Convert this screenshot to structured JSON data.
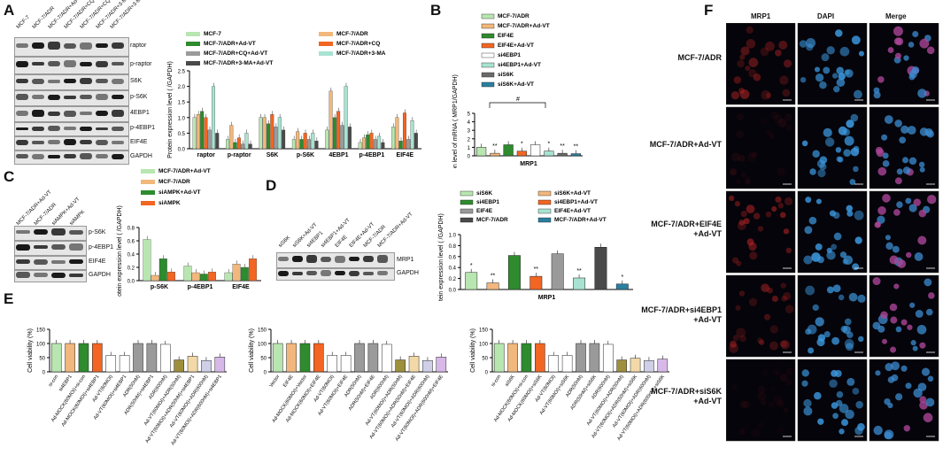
{
  "panels": {
    "A": {
      "letter": "A",
      "blot_lanes": [
        "MCF-7",
        "MCF-7/ADR",
        "MCF-7/ADR+Ad-VT",
        "MCF-7/ADR+CQ+Ad-VT",
        "MCF-7/ADR+CQ",
        "MCF-7/ADR+3-MA",
        "MCF-7/ADR+3-MA+Ad-VT"
      ],
      "blot_rows": [
        "raptor",
        "p-raptor",
        "S6K",
        "p-S6K",
        "4EBP1",
        "p-4EBP1",
        "EIF4E",
        "GAPDH"
      ]
    },
    "B": {
      "letter": "B"
    },
    "C": {
      "letter": "C",
      "blot_lanes": [
        "MCF-7/ADR+Ad-VT",
        "MCF-7/ADR",
        "siAMPK+Ad-VT",
        "siAMPK"
      ],
      "blot_rows": [
        "p-S6K",
        "p-4EBP1",
        "EIF4E",
        "GAPDH"
      ]
    },
    "D": {
      "letter": "D",
      "blot_lanes": [
        "siS6K",
        "siS6K+Ad-VT",
        "si4EBP1",
        "si4EBP1+Ad-VT",
        "EIF4E",
        "EIF4E+Ad-VT",
        "MCF-7/ADR",
        "MCF-7/ADR+Ad-VT"
      ],
      "blot_rows": [
        "MRP1",
        "GAPDH"
      ]
    },
    "E": {
      "letter": "E"
    },
    "F": {
      "letter": "F",
      "col_titles": [
        "MRP1",
        "DAPI",
        "Merge"
      ],
      "row_labels": [
        "MCF-7/ADR",
        "MCF-7/ADR+Ad-VT",
        "MCF-7/ADR+EIF4E\n+Ad-VT",
        "MCF-7/ADR+si4EBP1\n+Ad-VT",
        "MCF-7/ADR+siS6K\n+Ad-VT"
      ]
    }
  },
  "chart_data": [
    {
      "id": "A",
      "type": "bar",
      "title": "",
      "ylabel": "Protein expression level ( /GAPDH)",
      "ylim": [
        0,
        2.5
      ],
      "yticks": [
        "0.0",
        "0.5",
        "1.0",
        "1.5",
        "2.0",
        "2.5"
      ],
      "categories": [
        "raptor",
        "p-raptor",
        "S6K",
        "p-S6K",
        "4EBP1",
        "p-4EBP1",
        "EIF4E"
      ],
      "legend": [
        "MCF-7",
        "MCF-7/ADR",
        "MCF-7/ADR+Ad-VT",
        "MCF-7/ADR+CQ",
        "MCF-7/ADR+CQ+Ad-VT",
        "MCF-7/ADR+3-MA",
        "MCF-7/ADR+3-MA+Ad-VT"
      ],
      "colors": [
        "#b8e6b0",
        "#f2b77c",
        "#2e8b2e",
        "#f26522",
        "#9a9a9a",
        "#a8e3d2",
        "#4a4a4a"
      ],
      "series": [
        {
          "name": "MCF-7",
          "values": [
            1.0,
            0.3,
            1.0,
            0.3,
            0.6,
            0.2,
            0.7
          ]
        },
        {
          "name": "MCF-7/ADR",
          "values": [
            1.1,
            0.75,
            1.0,
            0.55,
            1.85,
            0.35,
            1.0
          ]
        },
        {
          "name": "MCF-7/ADR+Ad-VT",
          "values": [
            1.2,
            0.2,
            0.8,
            0.3,
            1.0,
            0.45,
            0.25
          ]
        },
        {
          "name": "MCF-7/ADR+CQ",
          "values": [
            1.0,
            0.35,
            1.1,
            0.5,
            1.2,
            0.5,
            1.15
          ]
        },
        {
          "name": "MCF-7/ADR+CQ+Ad-VT",
          "values": [
            0.6,
            0.15,
            0.7,
            0.3,
            0.75,
            0.3,
            0.3
          ]
        },
        {
          "name": "MCF-7/ADR+3-MA",
          "values": [
            2.0,
            0.5,
            1.0,
            0.5,
            2.0,
            0.4,
            0.9
          ]
        },
        {
          "name": "MCF-7/ADR+3-MA+Ad-VT",
          "values": [
            0.5,
            0.15,
            0.6,
            0.25,
            0.7,
            0.2,
            0.5
          ]
        }
      ]
    },
    {
      "id": "B",
      "type": "bar",
      "ylabel": "Expression level  of  mRNA ( MRP1/GAPDH)",
      "xlabel": "MRP1",
      "ylim": [
        0,
        5
      ],
      "yticks": [
        "0",
        "1",
        "2",
        "3",
        "4",
        "5"
      ],
      "categories": [
        "MCF-7/ADR",
        "MCF-7/ADR+Ad-VT",
        "EIF4E",
        "EIF4E+Ad-VT",
        "si4EBP1",
        "si4EBP1+Ad-VT",
        "siS6K",
        "siS6K+Ad-VT"
      ],
      "values": [
        1.0,
        0.3,
        1.3,
        0.55,
        1.3,
        0.55,
        0.3,
        0.25
      ],
      "colors": [
        "#b8e6b0",
        "#f2b77c",
        "#2e8b2e",
        "#f26522",
        "#ffffff",
        "#a8e3d2",
        "#6a6a6a",
        "#2a7fa0"
      ],
      "annotations": [
        "",
        "**",
        "",
        "*",
        "",
        "*",
        "**",
        "**"
      ],
      "bracket_label": "#"
    },
    {
      "id": "C",
      "type": "bar",
      "ylabel": "Protein expression level ( /GAPDH)",
      "ylim": [
        0,
        0.8
      ],
      "yticks": [
        "0.0",
        "0.2",
        "0.4",
        "0.6",
        "0.8"
      ],
      "categories": [
        "p-S6K",
        "p-4EBP1",
        "EIF4E"
      ],
      "legend": [
        "MCF-7/ADR+Ad-VT",
        "MCF-7/ADR",
        "siAMPK+Ad-VT",
        "siAMPK"
      ],
      "colors": [
        "#b8e6b0",
        "#f2b77c",
        "#2e8b2e",
        "#f26522"
      ],
      "series": [
        {
          "name": "MCF-7/ADR+Ad-VT",
          "values": [
            0.62,
            0.22,
            0.12
          ]
        },
        {
          "name": "MCF-7/ADR",
          "values": [
            0.08,
            0.12,
            0.25
          ]
        },
        {
          "name": "siAMPK+Ad-VT",
          "values": [
            0.33,
            0.1,
            0.2
          ]
        },
        {
          "name": "siAMPK",
          "values": [
            0.13,
            0.13,
            0.33
          ]
        }
      ]
    },
    {
      "id": "D",
      "type": "bar",
      "ylabel": "Protein expression level ( /GAPDH)",
      "xlabel": "MRP1",
      "ylim": [
        0,
        1.0
      ],
      "yticks": [
        "0.0",
        "0.2",
        "0.4",
        "0.6",
        "0.8",
        "1.0"
      ],
      "categories": [
        "siS6K",
        "siS6K+Ad-VT",
        "si4EBP1",
        "si4EBP1+Ad-VT",
        "EIF4E",
        "EIF4E+Ad-VT",
        "MCF-7/ADR",
        "MCF-7/ADR+Ad-VT"
      ],
      "values": [
        0.31,
        0.12,
        0.62,
        0.24,
        0.65,
        0.21,
        0.77,
        0.1
      ],
      "colors": [
        "#b8e6b0",
        "#f2b77c",
        "#2e8b2e",
        "#f26522",
        "#9a9a9a",
        "#a8e3d2",
        "#4a4a4a",
        "#2a7fa0"
      ],
      "annotations": [
        "*",
        "**",
        "",
        "**",
        "",
        "**",
        "",
        "*"
      ]
    },
    {
      "id": "E1",
      "type": "bar",
      "ylabel": "Cell viability (%)",
      "ylim": [
        0,
        150
      ],
      "yticks": [
        "0",
        "50",
        "100",
        "150"
      ],
      "categories": [
        "si-con",
        "si4EBP1",
        "Ad-MOCK(60MOI)+si-con",
        "Ad-MOCK(60MOI)+si4EBP1",
        "Ad-VT(60MOI)",
        "Ad-VT(60MOI)+si4EBP1",
        "ADR(50nM)",
        "ADR(50nM)+si4EBP1",
        "ADR(600nM)",
        "Ad-VT(60MOI)+ADR(50nM)",
        "Ad-VT(60MOI)+ADR(50nM)+si4EBP1",
        "Ad-VT(60MOI)+ADR(600nM)",
        "Ad-VT(60MOI)+ADR(600nM)+si4EBP1"
      ],
      "values": [
        100,
        100,
        100,
        100,
        58,
        58,
        100,
        100,
        97,
        42,
        55,
        40,
        52
      ],
      "colors": [
        "#b8e6b0",
        "#f2b77c",
        "#2e8b2e",
        "#f26522",
        "#ffffff",
        "#ffffff",
        "#9a9a9a",
        "#9a9a9a",
        "#ffffff",
        "#9e8f3c",
        "#f3d9a8",
        "#cfcfe8",
        "#d8b8e8"
      ]
    },
    {
      "id": "E2",
      "type": "bar",
      "ylabel": "Cell viability (%)",
      "ylim": [
        0,
        150
      ],
      "yticks": [
        "0",
        "50",
        "100",
        "150"
      ],
      "categories": [
        "Vector",
        "EIF4E",
        "Ad-MOCK(60MOI)+Vector",
        "Ad-MOCK(60MOI)+EIF4E",
        "Ad-VT(60MOI)",
        "Ad-VT(60MOI)+EIF4E",
        "ADR(50nM)",
        "ADR(50nM)+EIF4E",
        "ADR(600nM)",
        "Ad-VT(60MOI)+ADR(50nM)",
        "Ad-VT(60MOI)+ADR(50nM)+EIF4E",
        "Ad-VT(60MOI)+ADR(600nM)",
        "Ad-VT(60MOI)+ADR(600nM)+EIF4E"
      ],
      "values": [
        100,
        100,
        100,
        100,
        58,
        58,
        100,
        100,
        97,
        42,
        55,
        40,
        52
      ],
      "colors": [
        "#b8e6b0",
        "#f2b77c",
        "#2e8b2e",
        "#f26522",
        "#ffffff",
        "#ffffff",
        "#9a9a9a",
        "#9a9a9a",
        "#ffffff",
        "#9e8f3c",
        "#f3d9a8",
        "#cfcfe8",
        "#d8b8e8"
      ]
    },
    {
      "id": "E3",
      "type": "bar",
      "ylabel": "Cell viability (%)",
      "ylim": [
        0,
        150
      ],
      "yticks": [
        "0",
        "50",
        "100",
        "150"
      ],
      "categories": [
        "si-con",
        "siS6K",
        "Ad-MOCK(60MOI)+si-con",
        "Ad-MOCK(60MOI)+siS6K",
        "Ad-VT(60MOI)",
        "Ad-VT(60MOI)+siS6K",
        "ADR(50nM)",
        "ADR(50nM)+siS6K",
        "ADR(600nM)",
        "Ad-VT(60MOI)+ADR(50nM)",
        "Ad-VT(60MOI)+ADR(50nM)+siS6K",
        "Ad-VT(60MOI)+ADR(600nM)",
        "Ad-VT(60MOI)+ADR(600nM)+siS6K"
      ],
      "values": [
        100,
        100,
        100,
        100,
        58,
        58,
        100,
        100,
        97,
        42,
        48,
        40,
        45
      ],
      "colors": [
        "#b8e6b0",
        "#f2b77c",
        "#2e8b2e",
        "#f26522",
        "#ffffff",
        "#ffffff",
        "#9a9a9a",
        "#9a9a9a",
        "#ffffff",
        "#9e8f3c",
        "#f3d9a8",
        "#cfcfe8",
        "#d8b8e8"
      ]
    }
  ]
}
